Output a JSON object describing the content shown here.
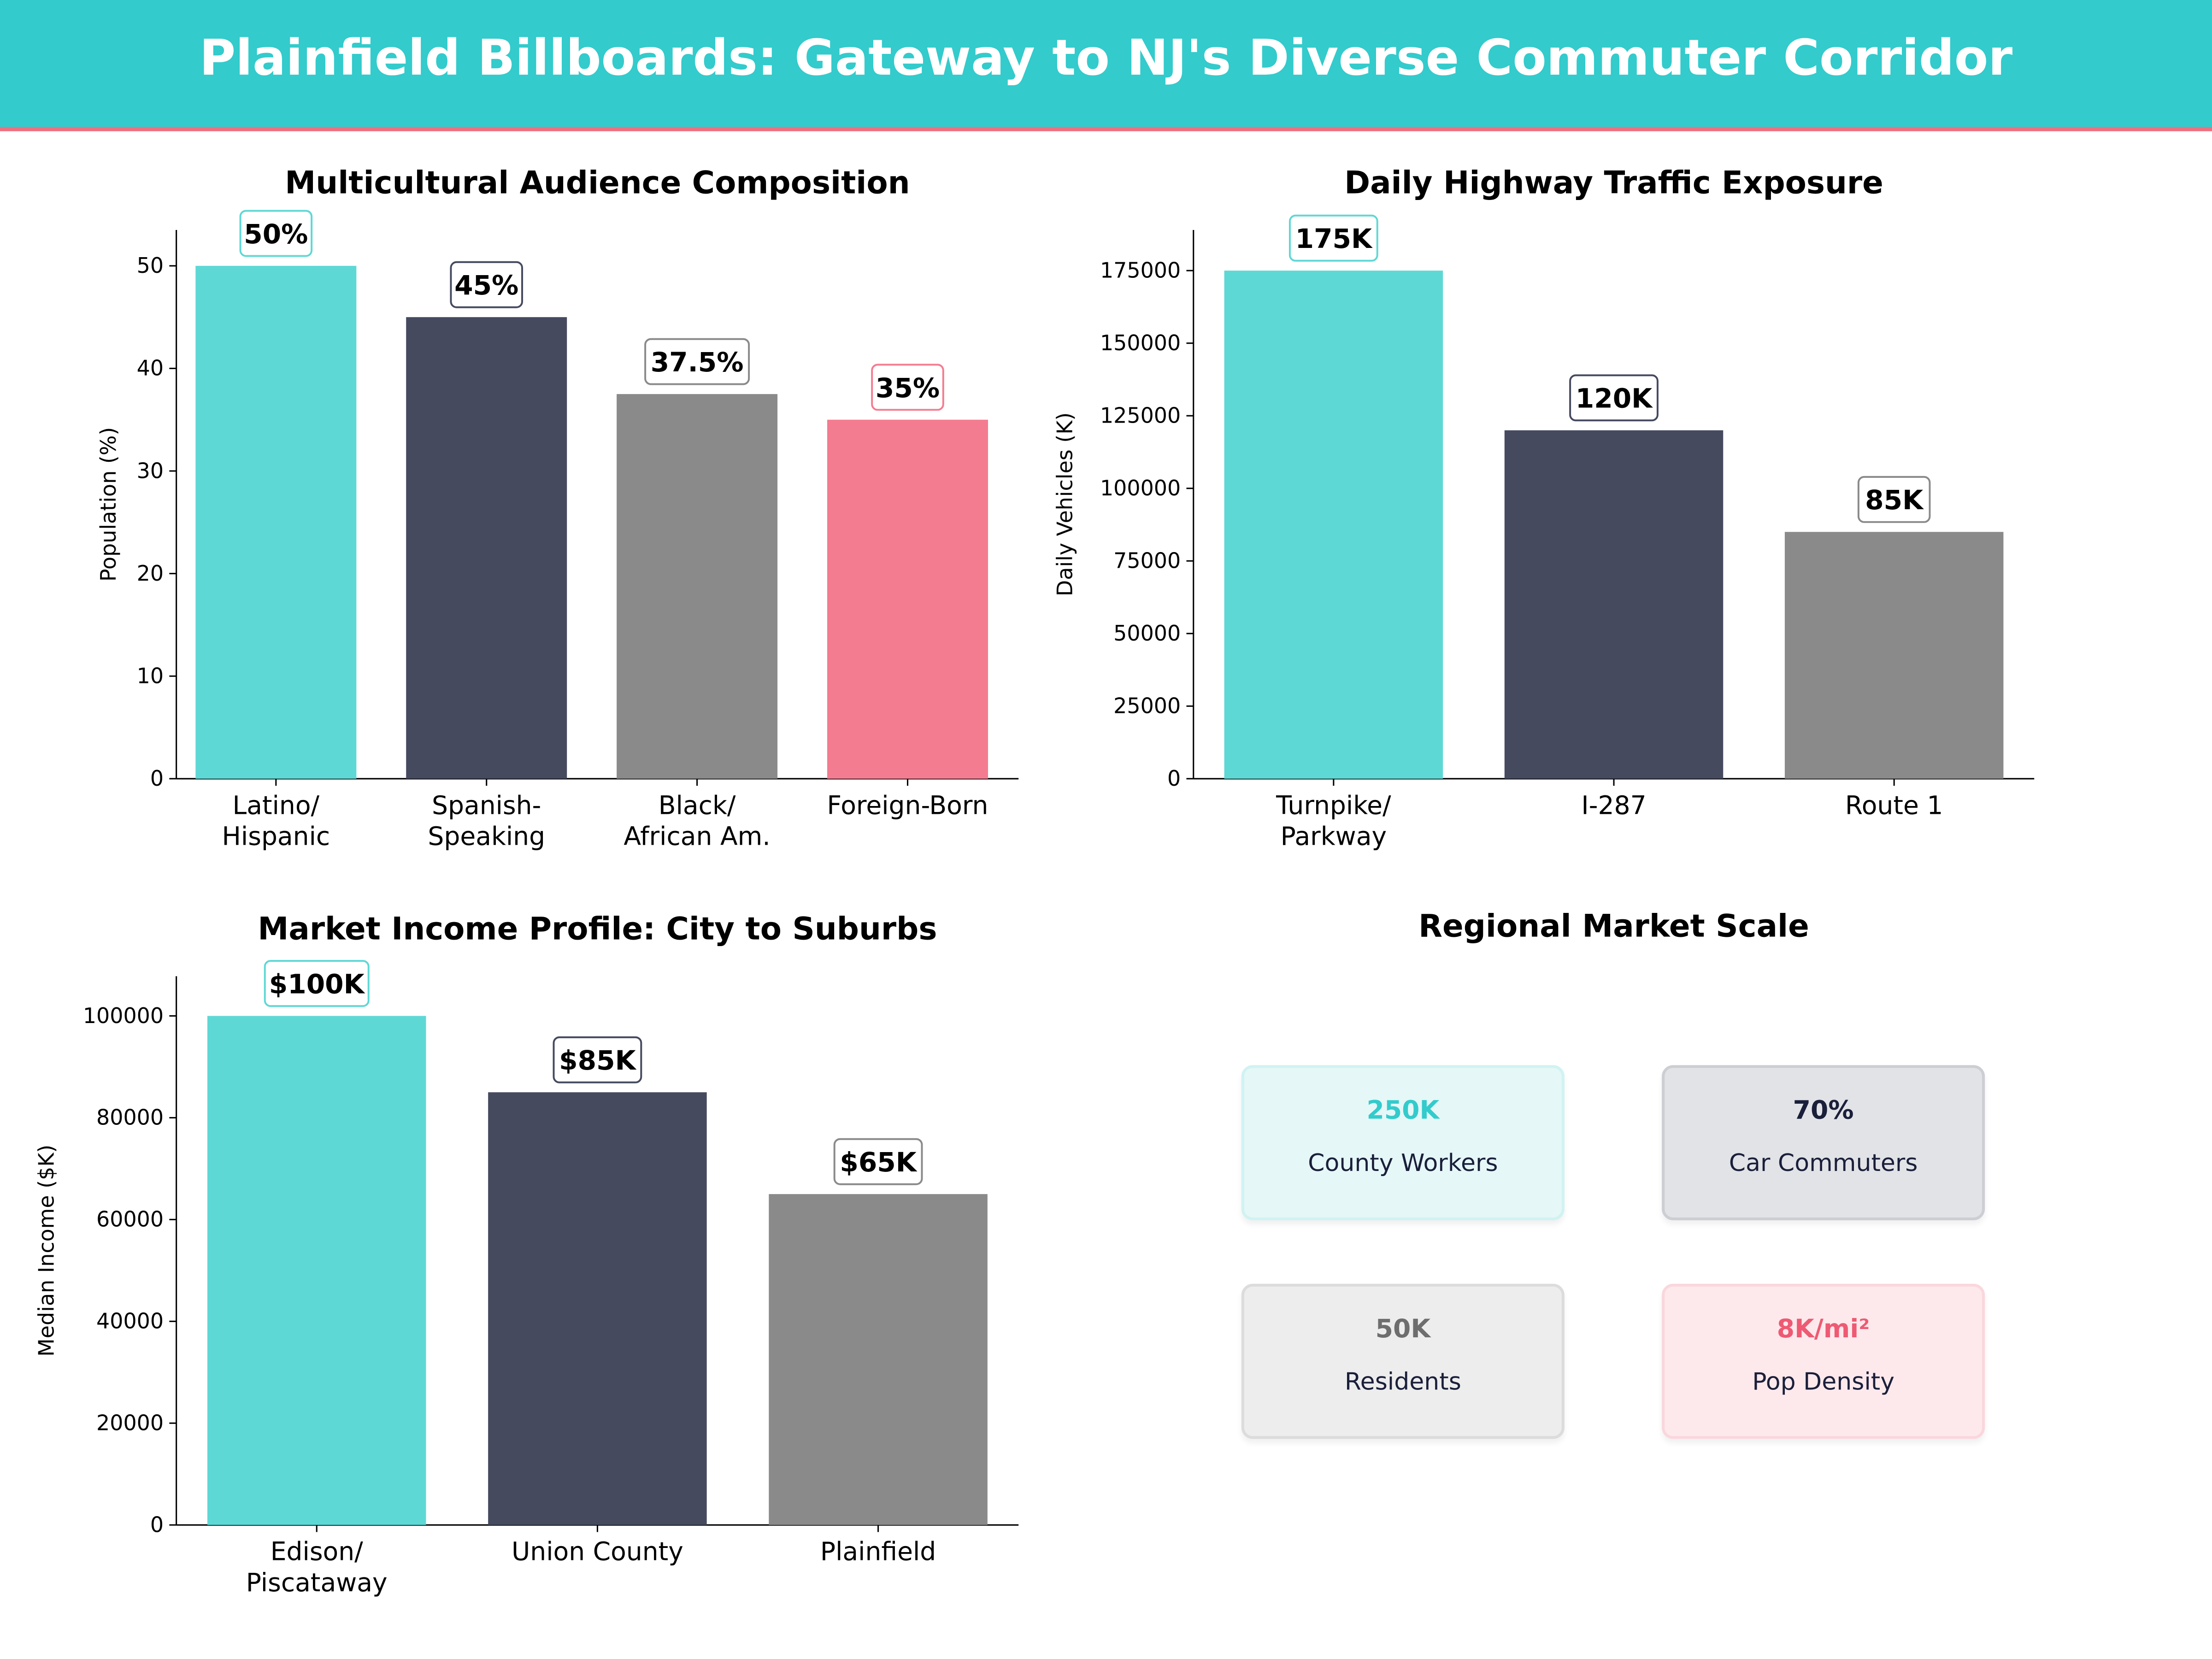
{
  "header": {
    "title": "Plainfield Billboards: Gateway to NJ's Diverse Commuter Corridor",
    "bg_color": "#33CBCC",
    "accent_line": "#F0707F"
  },
  "chart_data": [
    {
      "type": "bar",
      "title": "Multicultural Audience Composition",
      "xlabel": "",
      "ylabel": "Population (%)",
      "categories": [
        "Latino/\nHispanic",
        "Spanish-\nSpeaking",
        "Black/\nAfrican Am.",
        "Foreign-Born"
      ],
      "values": [
        50,
        45,
        37.5,
        35
      ],
      "data_labels": [
        "50%",
        "45%",
        "37.5%",
        "35%"
      ],
      "colors": [
        "#5ED8D5",
        "#454A5F",
        "#8A8A8A",
        "#F47C90"
      ],
      "ylim": [
        0,
        53.5
      ],
      "yticks": [
        0,
        10,
        20,
        30,
        40,
        50
      ],
      "yticklabels": [
        "0",
        "10",
        "20",
        "30",
        "40",
        "50"
      ],
      "grid": false
    },
    {
      "type": "bar",
      "title": "Daily Highway Traffic Exposure",
      "xlabel": "",
      "ylabel": "Daily Vehicles (K)",
      "categories": [
        "Turnpike/\nParkway",
        "I-287",
        "Route 1"
      ],
      "values": [
        175000,
        120000,
        85000
      ],
      "data_labels": [
        "175K",
        "120K",
        "85K"
      ],
      "colors": [
        "#5ED8D5",
        "#454A5F",
        "#8A8A8A"
      ],
      "ylim": [
        0,
        189000
      ],
      "yticks": [
        0,
        25000,
        50000,
        75000,
        100000,
        125000,
        150000,
        175000
      ],
      "yticklabels": [
        "0",
        "25000",
        "50000",
        "75000",
        "100000",
        "125000",
        "150000",
        "175000"
      ],
      "grid": false
    },
    {
      "type": "bar",
      "title": "Market Income Profile: City to Suburbs",
      "xlabel": "",
      "ylabel": "Median Income ($K)",
      "categories": [
        "Edison/\nPiscataway",
        "Union County",
        "Plainfield"
      ],
      "values": [
        100000,
        85000,
        65000
      ],
      "data_labels": [
        "$100K",
        "$85K",
        "$65K"
      ],
      "colors": [
        "#5ED8D5",
        "#454A5F",
        "#8A8A8A"
      ],
      "ylim": [
        0,
        107800
      ],
      "yticks": [
        0,
        20000,
        40000,
        60000,
        80000,
        100000
      ],
      "yticklabels": [
        "0",
        "20000",
        "40000",
        "60000",
        "80000",
        "100000"
      ],
      "grid": false
    }
  ],
  "scale_panel": {
    "title": "Regional Market Scale",
    "cards": [
      {
        "value": "250K",
        "label": "County Workers",
        "color": "#33CBCC",
        "bg": "#E5F7F7",
        "border": "#D0F3F2"
      },
      {
        "value": "70%",
        "label": "Car Commuters",
        "color": "#1A1F3A",
        "bg": "#E2E3E7",
        "border": "#CDCED3"
      },
      {
        "value": "50K",
        "label": "Residents",
        "color": "#6E6E6E",
        "bg": "#EDEDED",
        "border": "#DCDCDC"
      },
      {
        "value": "8K/mi²",
        "label": "Pop Density",
        "color": "#EE5A73",
        "bg": "#FDE9EC",
        "border": "#FAD7DD"
      }
    ]
  }
}
